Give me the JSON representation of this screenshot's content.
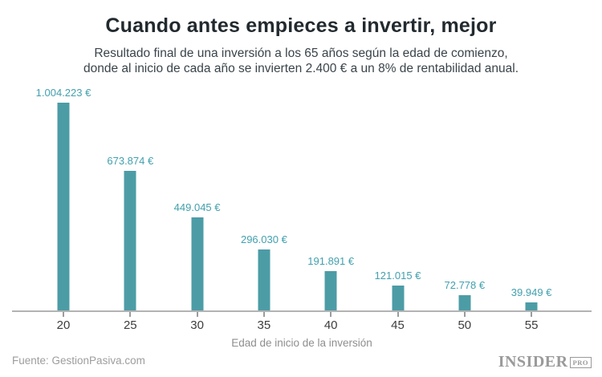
{
  "chart_data": {
    "type": "bar",
    "title": "Cuando antes empieces a invertir, mejor",
    "subtitle_line1": "Resultado final de una inversión a los 65 años según la edad de comienzo,",
    "subtitle_line2": "donde al inicio de cada año se invierten 2.400 € a un 8% de rentabilidad anual.",
    "categories": [
      "20",
      "25",
      "30",
      "35",
      "40",
      "45",
      "50",
      "55"
    ],
    "values": [
      1004223,
      673874,
      449045,
      296030,
      191891,
      121015,
      72778,
      39949
    ],
    "value_labels": [
      "1.004.223 €",
      "673.874 €",
      "449.045 €",
      "296.030 €",
      "191.891 €",
      "121.015 €",
      "72.778 €",
      "39.949 €"
    ],
    "xlabel": "Edad de inicio de la inversión",
    "ylabel": "",
    "ylim": [
      0,
      1004223
    ],
    "grid": "off",
    "legend": "none",
    "colors": {
      "bar": "#4c9ca6",
      "value_label": "#42a0ae",
      "tick": "#9c9c9c"
    }
  },
  "footer": {
    "source": "Fuente: GestionPasiva.com",
    "logo_main": "INSIDER",
    "logo_sub": "PRO"
  }
}
